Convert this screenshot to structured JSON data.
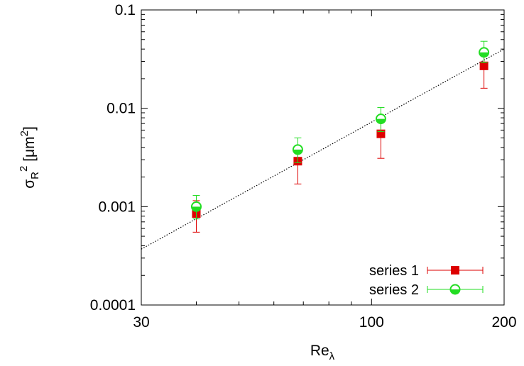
{
  "chart_data": {
    "type": "scatter",
    "title": "",
    "xlabel": "Re",
    "xlabel_sub": "λ",
    "ylabel_base": "σ",
    "ylabel_sub": "R",
    "ylabel_sup": "2",
    "ylabel_unit_open": " [μm",
    "ylabel_unit_sup": "2",
    "ylabel_unit_close": "]",
    "x_scale": "log",
    "y_scale": "log",
    "xlim": [
      30,
      200
    ],
    "ylim": [
      0.0001,
      0.1
    ],
    "x_ticks": [
      {
        "value": 30,
        "label": "30"
      },
      {
        "value": 100,
        "label": "100"
      },
      {
        "value": 200,
        "label": "200"
      }
    ],
    "y_ticks": [
      {
        "value": 0.0001,
        "label": "0.0001"
      },
      {
        "value": 0.001,
        "label": "0.001"
      },
      {
        "value": 0.01,
        "label": "0.01"
      },
      {
        "value": 0.1,
        "label": "0.1"
      }
    ],
    "grid": false,
    "legend_position": "bottom-right",
    "series": [
      {
        "name": "series 1",
        "color": "#dd0000",
        "marker": "square",
        "x": [
          40,
          68,
          105,
          180
        ],
        "y": [
          0.00085,
          0.0029,
          0.0055,
          0.027
        ],
        "y_err_low": [
          0.00055,
          0.0017,
          0.0031,
          0.016
        ],
        "y_err_high": [
          0.00115,
          0.0038,
          0.0075,
          0.035
        ]
      },
      {
        "name": "series 2",
        "color": "#22dd22",
        "marker": "circle-half",
        "x": [
          40,
          68,
          105,
          180
        ],
        "y": [
          0.001,
          0.0038,
          0.0078,
          0.037
        ],
        "y_err_low": [
          0.00075,
          0.0028,
          0.0058,
          0.029
        ],
        "y_err_high": [
          0.0013,
          0.005,
          0.0102,
          0.048
        ]
      }
    ],
    "fit_line": {
      "style": "dotted",
      "color": "#000000",
      "points": [
        [
          30,
          0.00037
        ],
        [
          200,
          0.04
        ]
      ]
    }
  }
}
